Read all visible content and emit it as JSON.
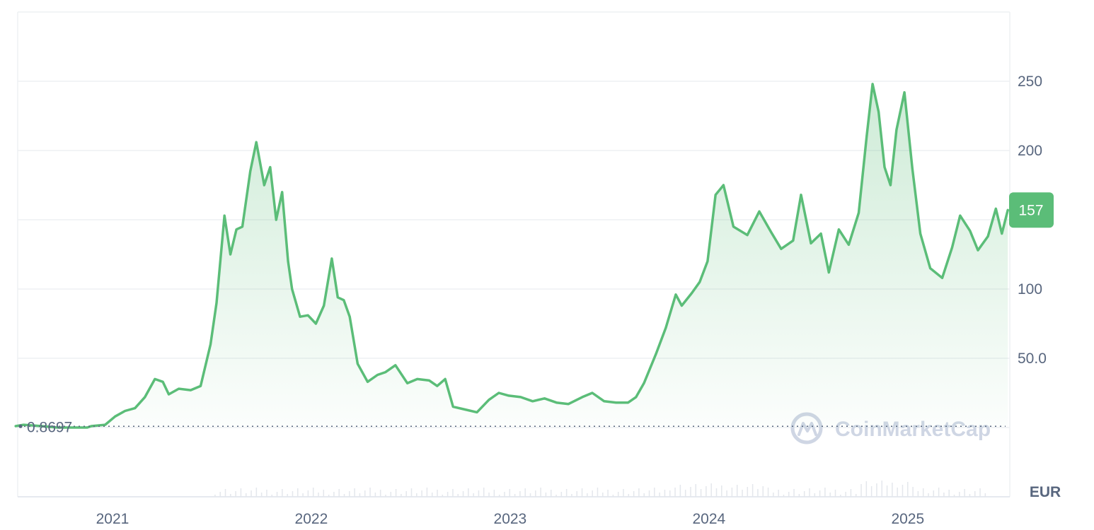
{
  "chart_data": {
    "type": "area",
    "watermark": "CoinMarketCap",
    "currency": "EUR",
    "current_price_label": "157",
    "start_price_label": "0.8697",
    "y_ticks": [
      "250",
      "200",
      "150",
      "100",
      "50.0"
    ],
    "y_tick_values": [
      250,
      200,
      150,
      100,
      50
    ],
    "x_ticks": [
      "2021",
      "2022",
      "2023",
      "2024",
      "2025"
    ],
    "x_tick_years": [
      2021.0,
      2022.0,
      2023.0,
      2024.0,
      2025.0
    ],
    "ylim": [
      -50,
      300
    ],
    "xlim": [
      2020.63,
      2025.62
    ],
    "start_price": 0.8697,
    "current_price": 157,
    "grid": true,
    "colors": {
      "line": "#5bbd78",
      "badge": "#5bbd78",
      "grid": "#eef0f3",
      "text": "#58667e"
    },
    "series": [
      {
        "points": [
          [
            2020.62,
            1
          ],
          [
            2020.66,
            2
          ],
          [
            2020.75,
            1
          ],
          [
            2020.83,
            0
          ],
          [
            2020.9,
            0
          ],
          [
            2020.98,
            0
          ],
          [
            2021.0,
            1
          ],
          [
            2021.07,
            2
          ],
          [
            2021.12,
            8
          ],
          [
            2021.17,
            12
          ],
          [
            2021.22,
            14
          ],
          [
            2021.27,
            22
          ],
          [
            2021.32,
            35
          ],
          [
            2021.36,
            33
          ],
          [
            2021.39,
            24
          ],
          [
            2021.44,
            28
          ],
          [
            2021.5,
            27
          ],
          [
            2021.55,
            30
          ],
          [
            2021.6,
            60
          ],
          [
            2021.63,
            90
          ],
          [
            2021.67,
            153
          ],
          [
            2021.7,
            125
          ],
          [
            2021.73,
            143
          ],
          [
            2021.76,
            145
          ],
          [
            2021.8,
            185
          ],
          [
            2021.83,
            206
          ],
          [
            2021.87,
            175
          ],
          [
            2021.9,
            188
          ],
          [
            2021.93,
            150
          ],
          [
            2021.96,
            170
          ],
          [
            2021.99,
            120
          ],
          [
            2022.01,
            100
          ],
          [
            2022.05,
            80
          ],
          [
            2022.09,
            81
          ],
          [
            2022.13,
            75
          ],
          [
            2022.17,
            88
          ],
          [
            2022.21,
            122
          ],
          [
            2022.24,
            94
          ],
          [
            2022.27,
            92
          ],
          [
            2022.3,
            80
          ],
          [
            2022.34,
            46
          ],
          [
            2022.39,
            33
          ],
          [
            2022.44,
            38
          ],
          [
            2022.48,
            40
          ],
          [
            2022.53,
            45
          ],
          [
            2022.59,
            32
          ],
          [
            2022.64,
            35
          ],
          [
            2022.7,
            34
          ],
          [
            2022.74,
            30
          ],
          [
            2022.78,
            35
          ],
          [
            2022.82,
            15
          ],
          [
            2022.88,
            13
          ],
          [
            2022.94,
            11
          ],
          [
            2023.0,
            20
          ],
          [
            2023.05,
            25
          ],
          [
            2023.1,
            23
          ],
          [
            2023.16,
            22
          ],
          [
            2023.22,
            19
          ],
          [
            2023.28,
            21
          ],
          [
            2023.34,
            18
          ],
          [
            2023.4,
            17
          ],
          [
            2023.47,
            22
          ],
          [
            2023.52,
            25
          ],
          [
            2023.58,
            19
          ],
          [
            2023.64,
            18
          ],
          [
            2023.7,
            18
          ],
          [
            2023.74,
            22
          ],
          [
            2023.78,
            32
          ],
          [
            2023.84,
            53
          ],
          [
            2023.89,
            72
          ],
          [
            2023.94,
            96
          ],
          [
            2023.97,
            88
          ],
          [
            2024.02,
            97
          ],
          [
            2024.06,
            105
          ],
          [
            2024.1,
            120
          ],
          [
            2024.14,
            168
          ],
          [
            2024.18,
            175
          ],
          [
            2024.23,
            145
          ],
          [
            2024.3,
            139
          ],
          [
            2024.36,
            156
          ],
          [
            2024.42,
            141
          ],
          [
            2024.47,
            129
          ],
          [
            2024.53,
            135
          ],
          [
            2024.57,
            168
          ],
          [
            2024.62,
            133
          ],
          [
            2024.67,
            140
          ],
          [
            2024.71,
            112
          ],
          [
            2024.76,
            143
          ],
          [
            2024.81,
            132
          ],
          [
            2024.86,
            155
          ],
          [
            2024.9,
            210
          ],
          [
            2024.93,
            248
          ],
          [
            2024.96,
            228
          ],
          [
            2024.99,
            188
          ],
          [
            2025.02,
            175
          ],
          [
            2025.05,
            215
          ],
          [
            2025.09,
            242
          ],
          [
            2025.13,
            187
          ],
          [
            2025.17,
            140
          ],
          [
            2025.22,
            115
          ],
          [
            2025.28,
            108
          ],
          [
            2025.33,
            130
          ],
          [
            2025.37,
            153
          ],
          [
            2025.42,
            142
          ],
          [
            2025.46,
            128
          ],
          [
            2025.51,
            138
          ],
          [
            2025.55,
            158
          ],
          [
            2025.58,
            140
          ],
          [
            2025.61,
            157
          ]
        ]
      }
    ]
  }
}
